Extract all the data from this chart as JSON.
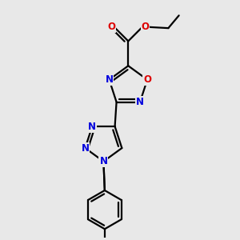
{
  "bg_color": "#e8e8e8",
  "bond_color": "#000000",
  "nitrogen_color": "#0000dd",
  "oxygen_color": "#dd0000",
  "line_width": 1.6,
  "figsize": [
    3.0,
    3.0
  ],
  "dpi": 100,
  "xlim": [
    0,
    10
  ],
  "ylim": [
    0,
    10
  ]
}
